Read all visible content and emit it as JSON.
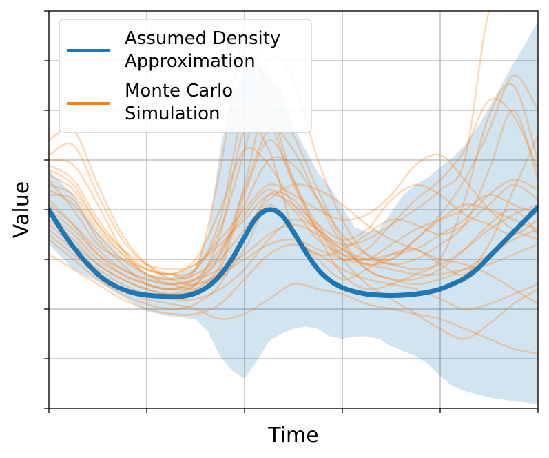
{
  "chart_data": {
    "type": "line",
    "title": "",
    "xlabel": "Time",
    "ylabel": "Value",
    "xlim": [
      0,
      10
    ],
    "ylim": [
      -4,
      4
    ],
    "grid": true,
    "tick_labels_shown": false,
    "legend_placement": "top-left",
    "legend": [
      {
        "label_lines": [
          "Assumed Density",
          "Approximation"
        ],
        "color": "#1f77b4"
      },
      {
        "label_lines": [
          "Monte Carlo",
          "Simulation"
        ],
        "color": "#ff7f0e"
      }
    ],
    "band_color": "#1f77b4",
    "series": [
      {
        "name": "Assumed Density Approximation",
        "kind": "mean",
        "color": "#1f77b4",
        "x": [
          0,
          0.25,
          0.5,
          0.75,
          1,
          1.25,
          1.5,
          1.75,
          2,
          2.25,
          2.5,
          2.75,
          3,
          3.25,
          3.5,
          3.75,
          4,
          4.25,
          4.5,
          4.75,
          5,
          5.25,
          5.5,
          5.75,
          6,
          6.25,
          6.5,
          6.75,
          7,
          7.25,
          7.5,
          7.75,
          8,
          8.25,
          8.5,
          8.75,
          9,
          9.25,
          9.5,
          9.75,
          10
        ],
        "y": [
          0,
          -0.4,
          -0.75,
          -1.05,
          -1.3,
          -1.48,
          -1.6,
          -1.68,
          -1.72,
          -1.74,
          -1.75,
          -1.74,
          -1.68,
          -1.55,
          -1.32,
          -0.98,
          -0.55,
          -0.15,
          0,
          -0.1,
          -0.45,
          -0.85,
          -1.2,
          -1.43,
          -1.57,
          -1.65,
          -1.7,
          -1.72,
          -1.73,
          -1.72,
          -1.7,
          -1.66,
          -1.6,
          -1.5,
          -1.38,
          -1.2,
          -0.95,
          -0.7,
          -0.45,
          -0.2,
          0.05
        ]
      },
      {
        "name": "Uncertainty band upper",
        "kind": "band_upper",
        "x": [
          0,
          0.5,
          1,
          1.5,
          2,
          2.5,
          3,
          3.25,
          3.5,
          3.75,
          4,
          4.25,
          4.5,
          4.75,
          5,
          5.25,
          5.5,
          5.75,
          6,
          6.25,
          6.5,
          6.75,
          7,
          7.25,
          7.5,
          7.75,
          8,
          8.25,
          8.5,
          8.75,
          9,
          9.25,
          9.5,
          9.75,
          10
        ],
        "y": [
          0.8,
          0.3,
          -0.45,
          -0.95,
          -1.3,
          -1.35,
          -1.15,
          -0.5,
          1.2,
          2.35,
          2.75,
          2.95,
          2.7,
          2.4,
          1.7,
          1.2,
          0.75,
          0.45,
          0.05,
          -0.35,
          -0.45,
          -0.4,
          -0.05,
          0.3,
          0.5,
          0.65,
          0.85,
          1.05,
          1.3,
          1.65,
          2.05,
          2.5,
          2.95,
          3.35,
          3.8
        ]
      },
      {
        "name": "Uncertainty band lower",
        "kind": "band_lower",
        "x": [
          0,
          0.5,
          1,
          1.5,
          2,
          2.5,
          3,
          3.25,
          3.5,
          3.75,
          4,
          4.25,
          4.5,
          4.75,
          5,
          5.25,
          5.5,
          5.75,
          6,
          6.25,
          6.5,
          6.75,
          7,
          7.25,
          7.5,
          7.75,
          8,
          8.25,
          8.5,
          8.75,
          9,
          9.25,
          9.5,
          9.75,
          10
        ],
        "y": [
          -0.7,
          -1.2,
          -1.45,
          -1.75,
          -2.05,
          -2.15,
          -2.2,
          -2.45,
          -2.95,
          -3.25,
          -3.4,
          -3.05,
          -2.65,
          -2.5,
          -2.4,
          -2.35,
          -2.4,
          -2.55,
          -2.6,
          -2.55,
          -2.55,
          -2.6,
          -2.75,
          -2.85,
          -2.95,
          -3.1,
          -3.35,
          -3.55,
          -3.65,
          -3.72,
          -3.78,
          -3.82,
          -3.86,
          -3.88,
          -3.92
        ]
      }
    ],
    "mc_color": "#ff7f0e",
    "mc_x": [
      0,
      0.5,
      1,
      1.5,
      2,
      2.5,
      3,
      3.5,
      4,
      4.5,
      5,
      5.5,
      6,
      6.5,
      7,
      7.5,
      8,
      8.5,
      9,
      9.5,
      10
    ],
    "mc_paths": [
      [
        0.3,
        0.2,
        -0.6,
        -1.1,
        -1.5,
        -1.6,
        -1.5,
        -0.5,
        1.6,
        1.2,
        -0.4,
        -0.9,
        -0.8,
        -0.5,
        -0.2,
        -0.3,
        -0.5,
        -0.3,
        0.1,
        0.5,
        0.2
      ],
      [
        1.0,
        0.9,
        0.1,
        -0.8,
        -1.3,
        -1.5,
        -1.6,
        -1.4,
        -0.8,
        0.1,
        -0.5,
        -1.0,
        -1.4,
        -1.2,
        -0.9,
        -0.8,
        -1.1,
        -1.3,
        -0.7,
        0.4,
        1.5
      ],
      [
        -0.5,
        -0.9,
        -1.3,
        -1.6,
        -1.8,
        -1.9,
        -2.0,
        -2.2,
        -2.1,
        -1.8,
        -1.5,
        -1.6,
        -1.7,
        -1.9,
        -2.0,
        -2.1,
        -2.2,
        -2.4,
        -2.6,
        -2.8,
        -2.9
      ],
      [
        0.6,
        0.0,
        -0.7,
        -1.0,
        -1.2,
        -1.3,
        -1.1,
        -0.7,
        -0.2,
        0.3,
        0.1,
        -0.3,
        -0.6,
        -0.4,
        0.2,
        0.5,
        0.3,
        -0.1,
        -0.3,
        -0.5,
        -0.2
      ],
      [
        -0.2,
        -0.6,
        -1.1,
        -1.4,
        -1.6,
        -1.7,
        -1.6,
        -1.1,
        0.5,
        2.3,
        1.5,
        0.4,
        -0.6,
        -1.2,
        -1.4,
        -1.5,
        -1.4,
        -1.2,
        -0.9,
        -0.6,
        -0.4
      ],
      [
        1.4,
        1.6,
        0.5,
        -0.5,
        -1.1,
        -1.4,
        -1.5,
        -1.2,
        0.3,
        1.4,
        0.6,
        -0.5,
        -1.3,
        -1.6,
        -1.5,
        -1.3,
        -1.0,
        0.2,
        1.9,
        2.5,
        1.0
      ],
      [
        0.2,
        -0.3,
        -0.9,
        -1.3,
        -1.5,
        -1.6,
        -1.4,
        -0.8,
        -0.1,
        0.4,
        0.0,
        -0.6,
        -0.9,
        -1.0,
        -0.9,
        -0.8,
        -0.5,
        -0.2,
        0.3,
        0.6,
        0.4
      ],
      [
        -0.9,
        -1.2,
        -1.5,
        -1.8,
        -2.0,
        -2.1,
        -2.1,
        -1.9,
        -1.4,
        -0.9,
        -0.7,
        -0.9,
        -1.2,
        -1.4,
        -1.5,
        -1.6,
        -1.8,
        -2.0,
        -1.9,
        -1.7,
        -1.5
      ],
      [
        0.8,
        0.5,
        -0.3,
        -0.9,
        -1.2,
        -1.3,
        -1.2,
        -0.2,
        2.0,
        1.8,
        0.5,
        -0.4,
        -1.0,
        -0.8,
        -0.3,
        0.2,
        0.6,
        1.2,
        2.2,
        1.9,
        0.8
      ],
      [
        -0.1,
        -0.5,
        -1.0,
        -1.3,
        -1.5,
        -1.6,
        -1.5,
        -1.3,
        -1.0,
        -0.7,
        -0.6,
        -0.8,
        -1.0,
        -1.1,
        -1.2,
        -1.3,
        -1.3,
        -1.2,
        -1.1,
        -0.9,
        -0.7
      ],
      [
        0.4,
        0.1,
        -0.5,
        -1.0,
        -1.3,
        -1.4,
        -1.2,
        -0.4,
        1.2,
        3.0,
        2.6,
        1.0,
        -0.2,
        -0.9,
        -1.0,
        -0.6,
        -0.1,
        0.6,
        1.6,
        2.7,
        2.0
      ],
      [
        -0.4,
        -0.8,
        -1.2,
        -1.5,
        -1.7,
        -1.8,
        -1.8,
        -1.6,
        -1.2,
        -0.6,
        -0.2,
        -0.4,
        -0.8,
        -1.1,
        -1.0,
        -0.6,
        -0.2,
        0.1,
        0.0,
        -0.2,
        -0.4
      ],
      [
        1.1,
        1.3,
        0.3,
        -0.6,
        -1.1,
        -1.3,
        -1.2,
        0.8,
        3.5,
        2.2,
        0.6,
        -0.3,
        -0.9,
        -1.0,
        -0.7,
        -0.4,
        -0.2,
        0.0,
        0.3,
        0.1,
        -0.1
      ],
      [
        0.0,
        -0.4,
        -0.9,
        -1.2,
        -1.4,
        -1.5,
        -1.4,
        -1.0,
        -0.4,
        0.2,
        0.5,
        0.4,
        0.1,
        -0.3,
        -0.6,
        -0.8,
        -1.0,
        -1.1,
        -1.3,
        -1.6,
        -1.9
      ],
      [
        0.5,
        0.3,
        -0.4,
        -0.9,
        -1.3,
        -1.4,
        -1.3,
        -0.9,
        0.1,
        1.0,
        0.9,
        0.2,
        -0.5,
        -0.9,
        -1.1,
        -1.0,
        -0.7,
        -0.3,
        0.8,
        2.0,
        0.6
      ],
      [
        -0.6,
        -1.0,
        -1.4,
        -1.7,
        -1.9,
        -2.0,
        -1.9,
        -1.5,
        -0.6,
        0.3,
        0.2,
        -0.4,
        -1.0,
        -1.5,
        -1.8,
        -2.1,
        -2.4,
        -2.6,
        -2.3,
        -1.9,
        -1.6
      ],
      [
        0.9,
        0.6,
        -0.2,
        -0.8,
        -1.2,
        -1.3,
        -1.0,
        0.0,
        1.2,
        0.9,
        0.1,
        -0.4,
        -0.7,
        -0.6,
        -0.3,
        0.0,
        0.4,
        1.0,
        4.0,
        4.5,
        4.5
      ],
      [
        0.1,
        -0.3,
        -0.8,
        -1.2,
        -1.4,
        -1.5,
        -1.4,
        -1.2,
        -0.9,
        -0.5,
        -0.3,
        -0.5,
        -0.8,
        -1.0,
        -1.1,
        -1.2,
        -1.1,
        -0.8,
        -0.4,
        -0.1,
        0.1
      ],
      [
        -0.3,
        -0.7,
        -1.1,
        -1.4,
        -1.6,
        -1.7,
        -1.5,
        -0.9,
        0.4,
        1.6,
        1.2,
        0.2,
        -0.7,
        -1.2,
        -1.4,
        -1.4,
        -1.2,
        -0.8,
        -0.3,
        0.0,
        -0.5
      ],
      [
        0.7,
        0.4,
        -0.3,
        -0.8,
        -1.1,
        -1.2,
        -1.1,
        -0.6,
        0.0,
        0.5,
        0.3,
        0.0,
        -0.2,
        -0.1,
        0.3,
        0.9,
        1.1,
        0.6,
        0.0,
        -0.4,
        -0.6
      ]
    ]
  }
}
